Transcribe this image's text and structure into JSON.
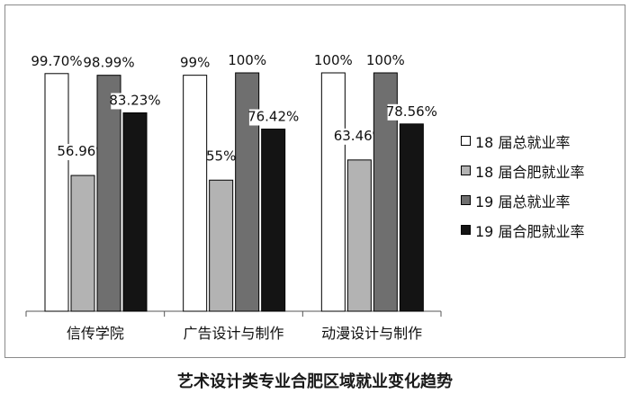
{
  "chart_data": {
    "type": "bar",
    "title": "艺术设计类专业合肥区域就业变化趋势",
    "categories": [
      "信传学院",
      "广告设计与制作",
      "动漫设计与制作"
    ],
    "series": [
      {
        "name": "18 届总就业率",
        "values": [
          99.7,
          99,
          100
        ],
        "labels": [
          "99.70%",
          "99%",
          "100%"
        ],
        "color": "#ffffff"
      },
      {
        "name": "18 届合肥就业率",
        "values": [
          56.96,
          55,
          63.46
        ],
        "labels": [
          "56.96%",
          "55%",
          "63.46%"
        ],
        "color": "#b3b3b3"
      },
      {
        "name": "19 届总就业率",
        "values": [
          98.99,
          100,
          100
        ],
        "labels": [
          "98.99%",
          "100%",
          "100%"
        ],
        "color": "#6f6f6f"
      },
      {
        "name": "19 届合肥就业率",
        "values": [
          83.23,
          76.42,
          78.56
        ],
        "labels": [
          "83.23%",
          "76.42%",
          "78.56%"
        ],
        "color": "#141414"
      }
    ],
    "ylim": [
      0,
      100
    ],
    "grid": false,
    "legend_position": "right"
  }
}
